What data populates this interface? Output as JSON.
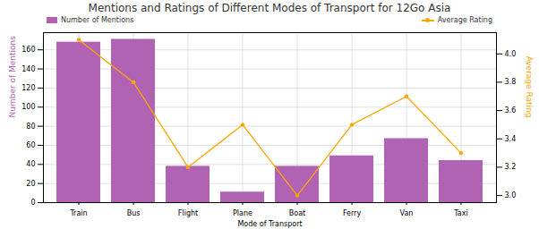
{
  "chart_data": {
    "type": "bar",
    "title": "Mentions and Ratings of Different Modes of Transport for 12Go Asia",
    "x_label": "Mode of Transport",
    "y_label": "Number of Mentions",
    "y2_label": "Average Rating",
    "categories": [
      "Train",
      "Bus",
      "Flight",
      "Plane",
      "Boat",
      "Ferry",
      "Van",
      "Taxi"
    ],
    "series": [
      {
        "name": "Number of Mentions",
        "type": "bar",
        "color": "#b062b3",
        "values": [
          168,
          171,
          38,
          11,
          38,
          49,
          67,
          44
        ]
      },
      {
        "name": "Average Rating",
        "type": "line",
        "axis": "y2",
        "color": "#ffa500",
        "marker": "circle",
        "values": [
          4.1,
          3.8,
          3.2,
          3.5,
          3.0,
          3.5,
          3.7,
          3.3
        ]
      }
    ],
    "ylim": [
      0,
      178
    ],
    "yticks": [
      0,
      20,
      40,
      60,
      80,
      100,
      120,
      140,
      160
    ],
    "y2lim": [
      2.95,
      4.15
    ],
    "y2ticks": [
      {
        "value": 3,
        "label": "3.0"
      },
      3.2,
      3.4,
      3.6,
      3.8,
      {
        "value": 4,
        "label": "4.0"
      }
    ],
    "grid": true,
    "legend": "top"
  }
}
